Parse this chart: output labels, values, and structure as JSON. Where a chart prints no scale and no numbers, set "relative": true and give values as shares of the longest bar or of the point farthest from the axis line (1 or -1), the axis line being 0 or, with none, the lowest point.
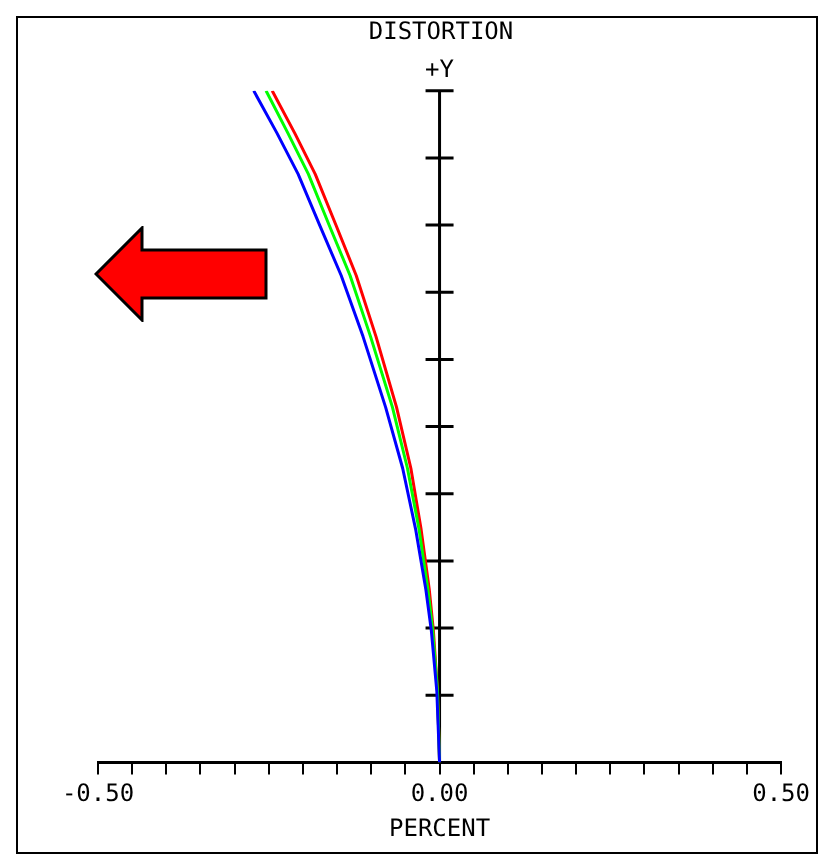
{
  "chart_data": {
    "type": "line",
    "title": "DISTORTION",
    "xlabel": "PERCENT",
    "relative": true,
    "marker": "none",
    "grid": false,
    "legend": false,
    "line_style": "solid",
    "xlim": [
      -0.5,
      0.5
    ],
    "xticks": [
      {
        "value": -0.5,
        "label": "-0.50"
      },
      {
        "value": -0.45,
        "label": null
      },
      {
        "value": -0.4,
        "label": null
      },
      {
        "value": -0.35,
        "label": null
      },
      {
        "value": -0.3,
        "label": null
      },
      {
        "value": -0.25,
        "label": null
      },
      {
        "value": -0.2,
        "label": null
      },
      {
        "value": -0.15,
        "label": null
      },
      {
        "value": -0.1,
        "label": null
      },
      {
        "value": -0.05,
        "label": null
      },
      {
        "value": 0,
        "label": "0.00"
      },
      {
        "value": 0.05,
        "label": null
      },
      {
        "value": 0.1,
        "label": null
      },
      {
        "value": 0.15,
        "label": null
      },
      {
        "value": 0.2,
        "label": null
      },
      {
        "value": 0.25,
        "label": null
      },
      {
        "value": 0.3,
        "label": null
      },
      {
        "value": 0.35,
        "label": null
      },
      {
        "value": 0.4,
        "label": null
      },
      {
        "value": 0.45,
        "label": null
      },
      {
        "value": 0.5,
        "label": "0.50"
      }
    ],
    "ref_lines": [
      {
        "axis": "x",
        "value": 0,
        "label": "+Y",
        "color": "#000000"
      }
    ],
    "series": [
      {
        "color": "#0000ff",
        "x": [
          -0.272,
          -0.238,
          -0.207,
          -0.176,
          -0.144,
          -0.112,
          -0.079,
          -0.054,
          -0.035,
          -0.02,
          -0.012,
          -0.004,
          0
        ],
        "values": [
          1,
          0.937,
          0.876,
          0.801,
          0.725,
          0.634,
          0.529,
          0.438,
          0.347,
          0.257,
          0.196,
          0.106,
          0
        ]
      },
      {
        "color": "#00ff00",
        "x": [
          -0.254,
          -0.222,
          -0.192,
          -0.162,
          -0.131,
          -0.101,
          -0.069,
          -0.047,
          -0.03,
          -0.017,
          -0.01,
          -0.003,
          0
        ],
        "values": [
          1,
          0.937,
          0.876,
          0.801,
          0.725,
          0.634,
          0.529,
          0.438,
          0.347,
          0.257,
          0.196,
          0.106,
          0
        ]
      },
      {
        "color": "#ff0000",
        "x": [
          -0.245,
          -0.212,
          -0.182,
          -0.152,
          -0.122,
          -0.093,
          -0.063,
          -0.042,
          -0.027,
          -0.015,
          -0.009,
          -0.003,
          0
        ],
        "values": [
          1,
          0.937,
          0.876,
          0.801,
          0.725,
          0.634,
          0.529,
          0.438,
          0.347,
          0.257,
          0.196,
          0.106,
          0
        ]
      }
    ]
  }
}
